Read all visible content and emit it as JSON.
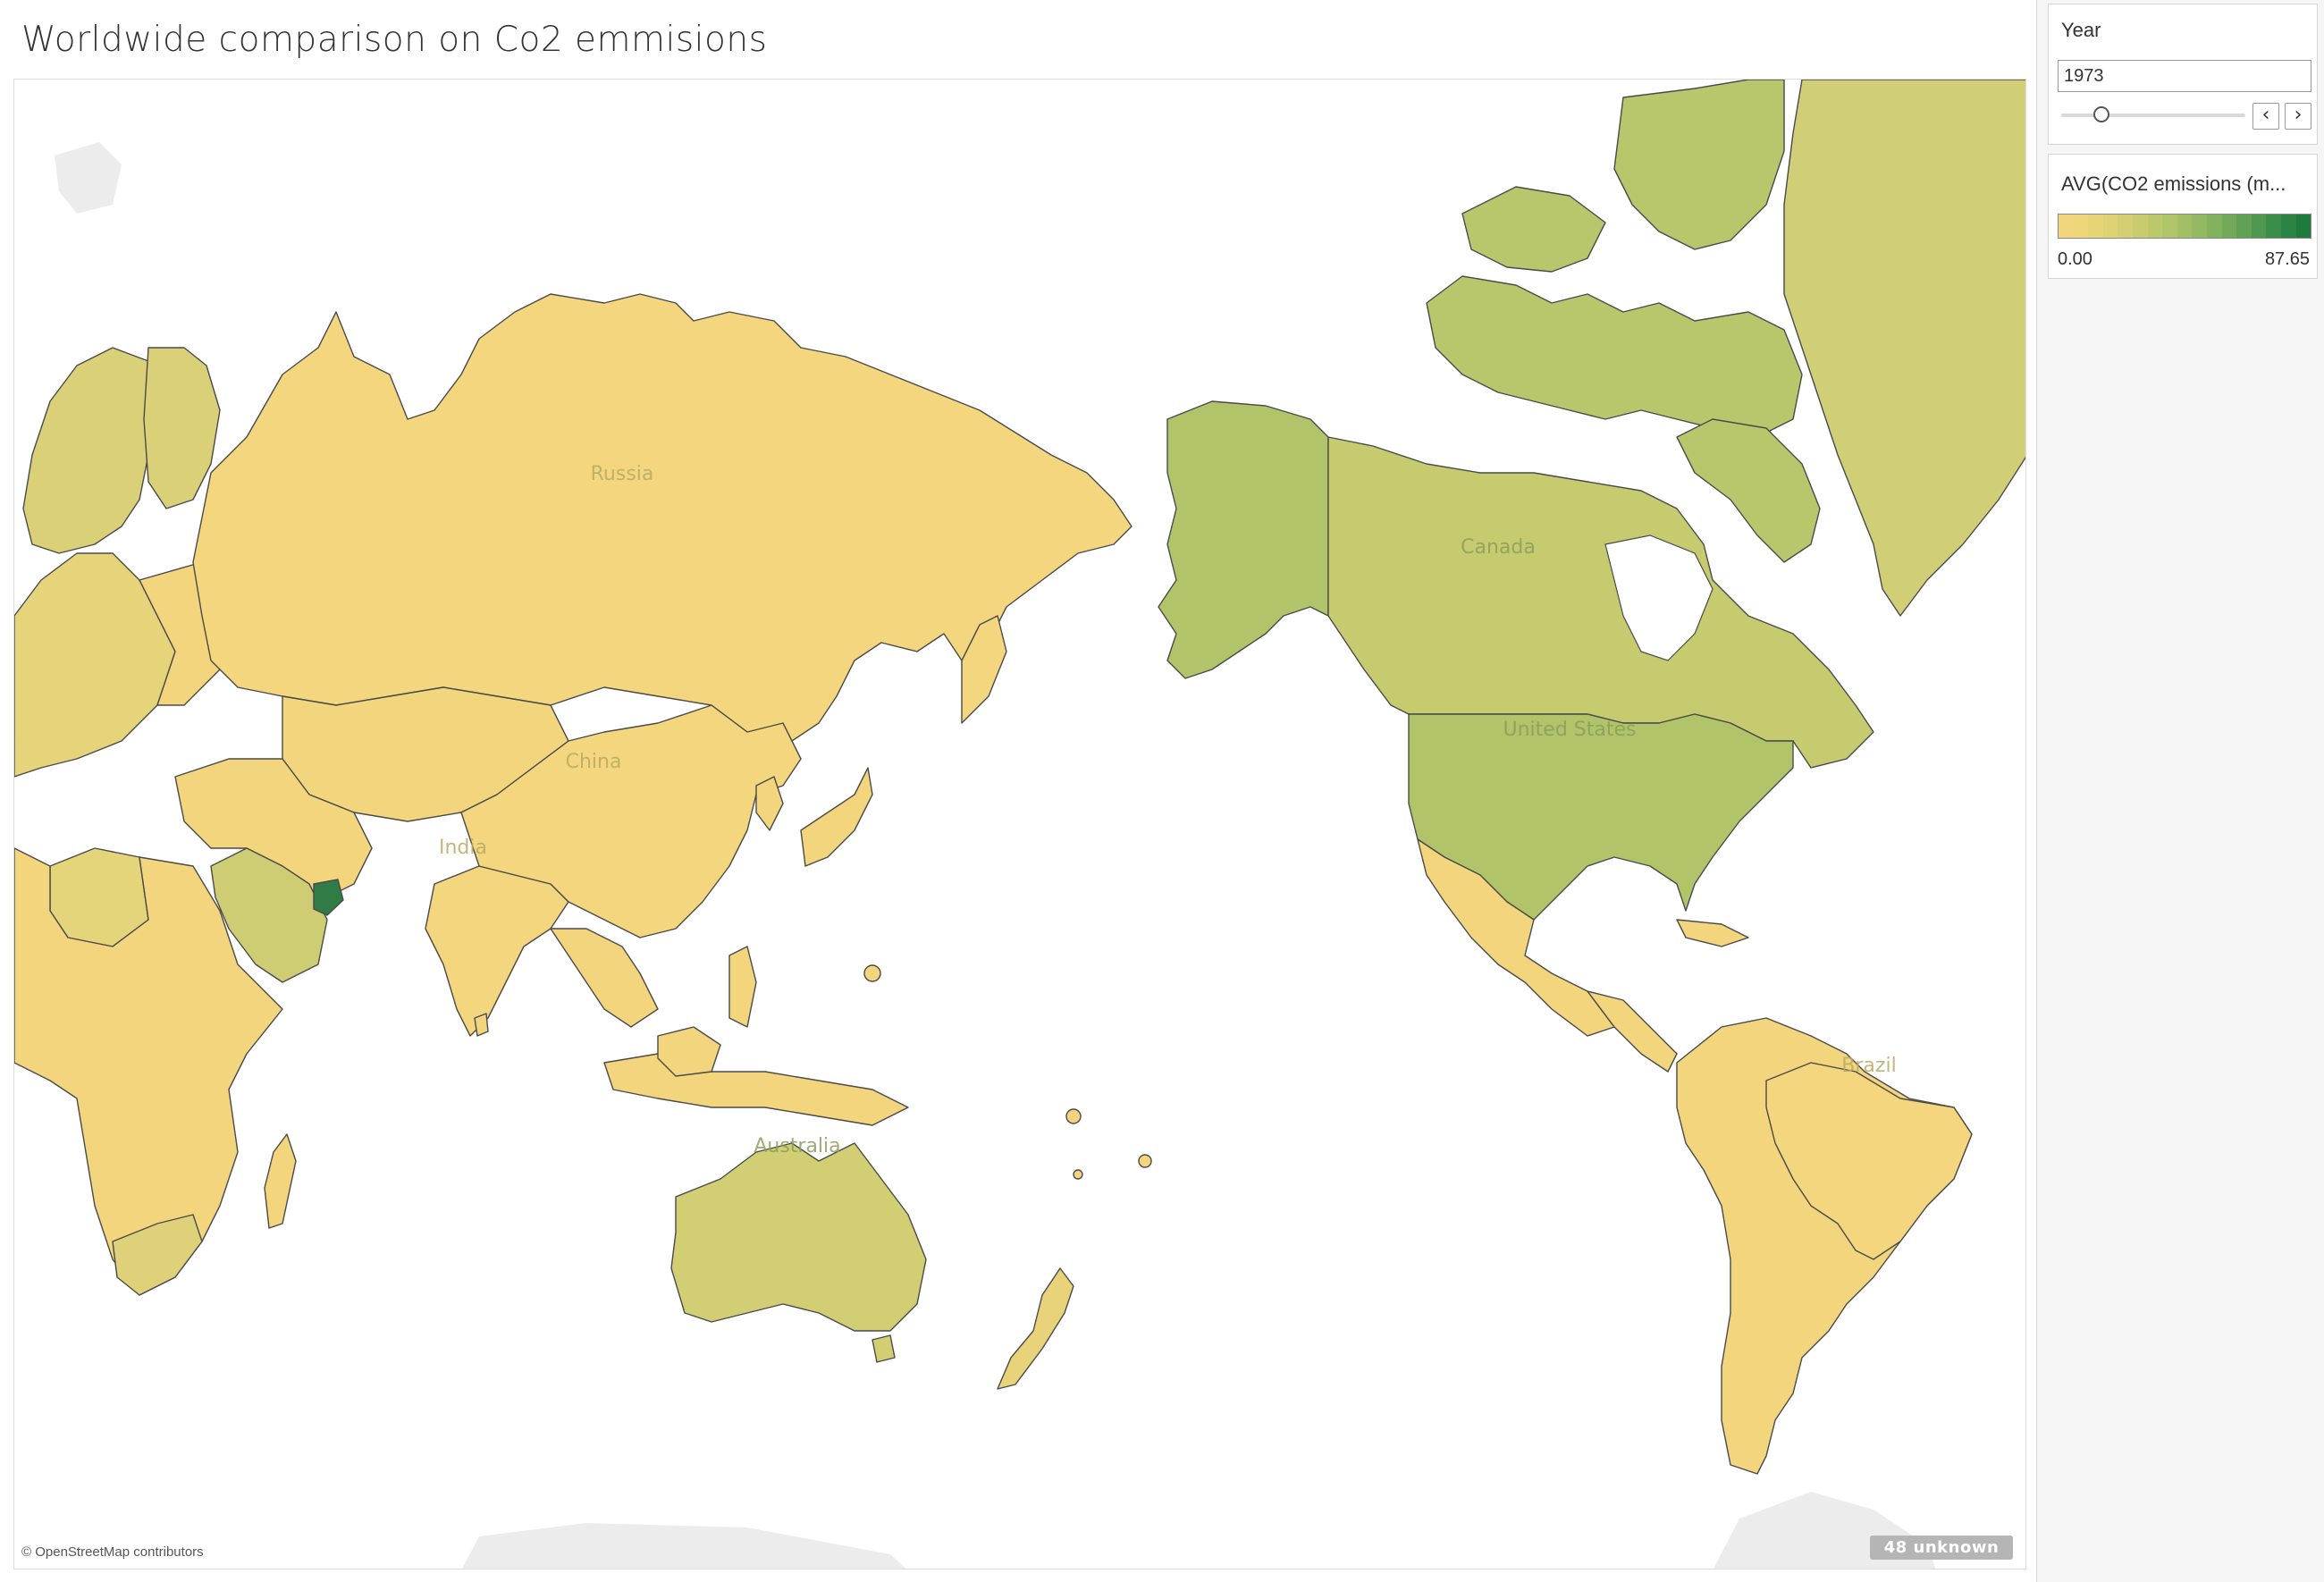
{
  "dashboard": {
    "title": "Worldwide comparison on Co2 emmisions"
  },
  "map": {
    "type": "filled-choropleth",
    "projection": "pacific-centered",
    "color_scale": {
      "min": 0.0,
      "max": 87.65,
      "min_label": "0.00",
      "max_label": "87.65",
      "colors": [
        "#f2d67e",
        "#eed67b",
        "#e6d577",
        "#ddd374",
        "#d3cf72",
        "#c8cc6f",
        "#bcc86c",
        "#b0c469",
        "#a2bf65",
        "#93b962",
        "#83b25e",
        "#72aa5a",
        "#60a155",
        "#4e9850",
        "#3b8e4a",
        "#2b8443",
        "#1f7a3d"
      ],
      "nodata_color": "#ececec"
    },
    "region_colors": {
      "default": "#f2d57d",
      "russia": "#f3d67e",
      "china": "#f3d67e",
      "india": "#f3d67e",
      "canada": "#c6cb6f",
      "united_states": "#b1c46a",
      "alaska": "#b1c46a",
      "greenland": "#d0cf78",
      "canadian_arctic": "#b8c76c",
      "australia": "#d2ce74",
      "brazil": "#f3d67e",
      "saudi_arabia": "#cfcd73",
      "uae": "#2f7c46",
      "libya": "#e4d47a",
      "south_africa": "#dfd17a",
      "europe_north": "#d9d078",
      "europe_mid": "#e6d47a",
      "new_zealand": "#e8d37a"
    },
    "labels": {
      "russia": "Russia",
      "china": "China",
      "india": "India",
      "canada": "Canada",
      "united_states": "United States",
      "australia": "Australia",
      "brazil": "Brazil"
    },
    "attribution": "© OpenStreetMap contributors",
    "unknown_badge": "48 unknown"
  },
  "filter": {
    "title": "Year",
    "value": "1973",
    "slider_position": 0.22,
    "prev_icon": "‹",
    "next_icon": "›"
  },
  "legend": {
    "title": "AVG(CO2 emissions (m..."
  }
}
